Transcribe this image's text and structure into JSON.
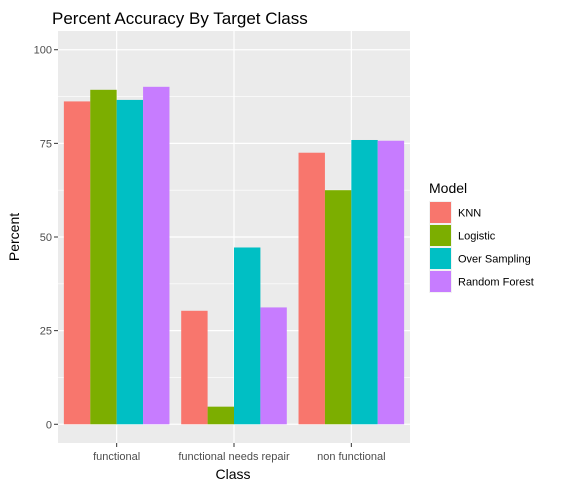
{
  "chart_data": {
    "type": "bar",
    "title": "Percent Accuracy By Target Class",
    "xlabel": "Class",
    "ylabel": "Percent",
    "categories": [
      "functional",
      "functional needs repair",
      "non functional"
    ],
    "ylim": [
      -5,
      105
    ],
    "yticks": [
      0,
      25,
      50,
      75,
      100
    ],
    "grid": true,
    "legend": {
      "title": "Model",
      "placement": "right"
    },
    "series": [
      {
        "name": "KNN",
        "color": "#F8766D",
        "values": [
          86.2,
          30.3,
          72.5
        ]
      },
      {
        "name": "Logistic",
        "color": "#7CAE00",
        "values": [
          89.3,
          4.7,
          62.5
        ]
      },
      {
        "name": "Over Sampling",
        "color": "#00BFC4",
        "values": [
          86.6,
          47.2,
          75.9
        ]
      },
      {
        "name": "Random Forest",
        "color": "#C77CFF",
        "values": [
          90.1,
          31.2,
          75.7
        ]
      }
    ],
    "panel_color": "#EBEBEB",
    "grid_color": "#FFFFFF"
  }
}
